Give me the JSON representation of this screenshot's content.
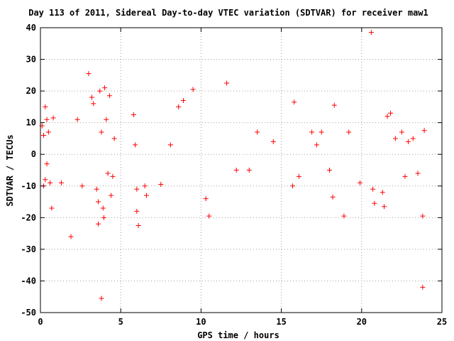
{
  "chart_data": {
    "type": "scatter",
    "title": "Day 113 of 2011, Sidereal Day-to-day VTEC variation (SDTVAR) for receiver maw1",
    "xlabel": "GPS time / hours",
    "ylabel": "SDTVAR / TECUs",
    "xlim": [
      0,
      25
    ],
    "ylim": [
      -50,
      40
    ],
    "x_ticks": [
      0,
      5,
      10,
      15,
      20,
      25
    ],
    "y_ticks": [
      -50,
      -40,
      -30,
      -20,
      -10,
      0,
      10,
      20,
      30,
      40
    ],
    "grid": true,
    "legend": "none",
    "marker": "+",
    "marker_color": "#ff0000",
    "series": [
      {
        "points": [
          [
            0.1,
            9
          ],
          [
            0.2,
            6
          ],
          [
            0.3,
            15
          ],
          [
            0.4,
            11
          ],
          [
            0.5,
            7
          ],
          [
            0.3,
            -8
          ],
          [
            0.2,
            -10
          ],
          [
            0.6,
            -9
          ],
          [
            0.7,
            -17
          ],
          [
            0.8,
            11.5
          ],
          [
            0.4,
            -3
          ],
          [
            1.3,
            -9
          ],
          [
            1.9,
            -26
          ],
          [
            2.3,
            11
          ],
          [
            2.6,
            -10
          ],
          [
            3.0,
            25.5
          ],
          [
            3.2,
            18
          ],
          [
            3.3,
            16
          ],
          [
            3.5,
            -11
          ],
          [
            3.6,
            -15
          ],
          [
            3.6,
            -22
          ],
          [
            3.7,
            20
          ],
          [
            3.8,
            7
          ],
          [
            3.9,
            -17
          ],
          [
            3.95,
            -20
          ],
          [
            4.0,
            21
          ],
          [
            4.1,
            11
          ],
          [
            4.2,
            -6
          ],
          [
            4.3,
            18.5
          ],
          [
            4.4,
            -13
          ],
          [
            4.5,
            -7
          ],
          [
            3.8,
            -45.5
          ],
          [
            4.6,
            5
          ],
          [
            5.8,
            12.5
          ],
          [
            5.9,
            3
          ],
          [
            6.0,
            -11
          ],
          [
            6.0,
            -18
          ],
          [
            6.1,
            -22.5
          ],
          [
            6.5,
            -10
          ],
          [
            6.6,
            -13
          ],
          [
            7.5,
            -9.5
          ],
          [
            8.1,
            3
          ],
          [
            8.6,
            15
          ],
          [
            8.9,
            17
          ],
          [
            9.5,
            20.5
          ],
          [
            10.3,
            -14
          ],
          [
            10.5,
            -19.5
          ],
          [
            11.6,
            22.5
          ],
          [
            13.5,
            7
          ],
          [
            15.8,
            16.5
          ],
          [
            15.7,
            -10
          ],
          [
            16.1,
            -7
          ],
          [
            16.9,
            7
          ],
          [
            17.5,
            7
          ],
          [
            18.3,
            15.5
          ],
          [
            18.2,
            -13.5
          ],
          [
            18.9,
            -19.5
          ],
          [
            19.2,
            7
          ],
          [
            19.9,
            -9
          ],
          [
            20.6,
            38.5
          ],
          [
            20.7,
            -11
          ],
          [
            20.8,
            -15.5
          ],
          [
            21.3,
            -12
          ],
          [
            21.4,
            -16.5
          ],
          [
            21.6,
            12
          ],
          [
            21.8,
            13
          ],
          [
            22.5,
            7
          ],
          [
            22.7,
            -7
          ],
          [
            23.5,
            -6
          ],
          [
            23.8,
            -19.5
          ],
          [
            23.8,
            -42
          ],
          [
            23.9,
            7.5
          ],
          [
            17.2,
            3
          ],
          [
            18.0,
            -5
          ],
          [
            12.2,
            -5
          ],
          [
            13.0,
            -5
          ],
          [
            14.5,
            4
          ],
          [
            22.1,
            5
          ],
          [
            22.9,
            4
          ],
          [
            23.2,
            5
          ]
        ]
      }
    ]
  }
}
